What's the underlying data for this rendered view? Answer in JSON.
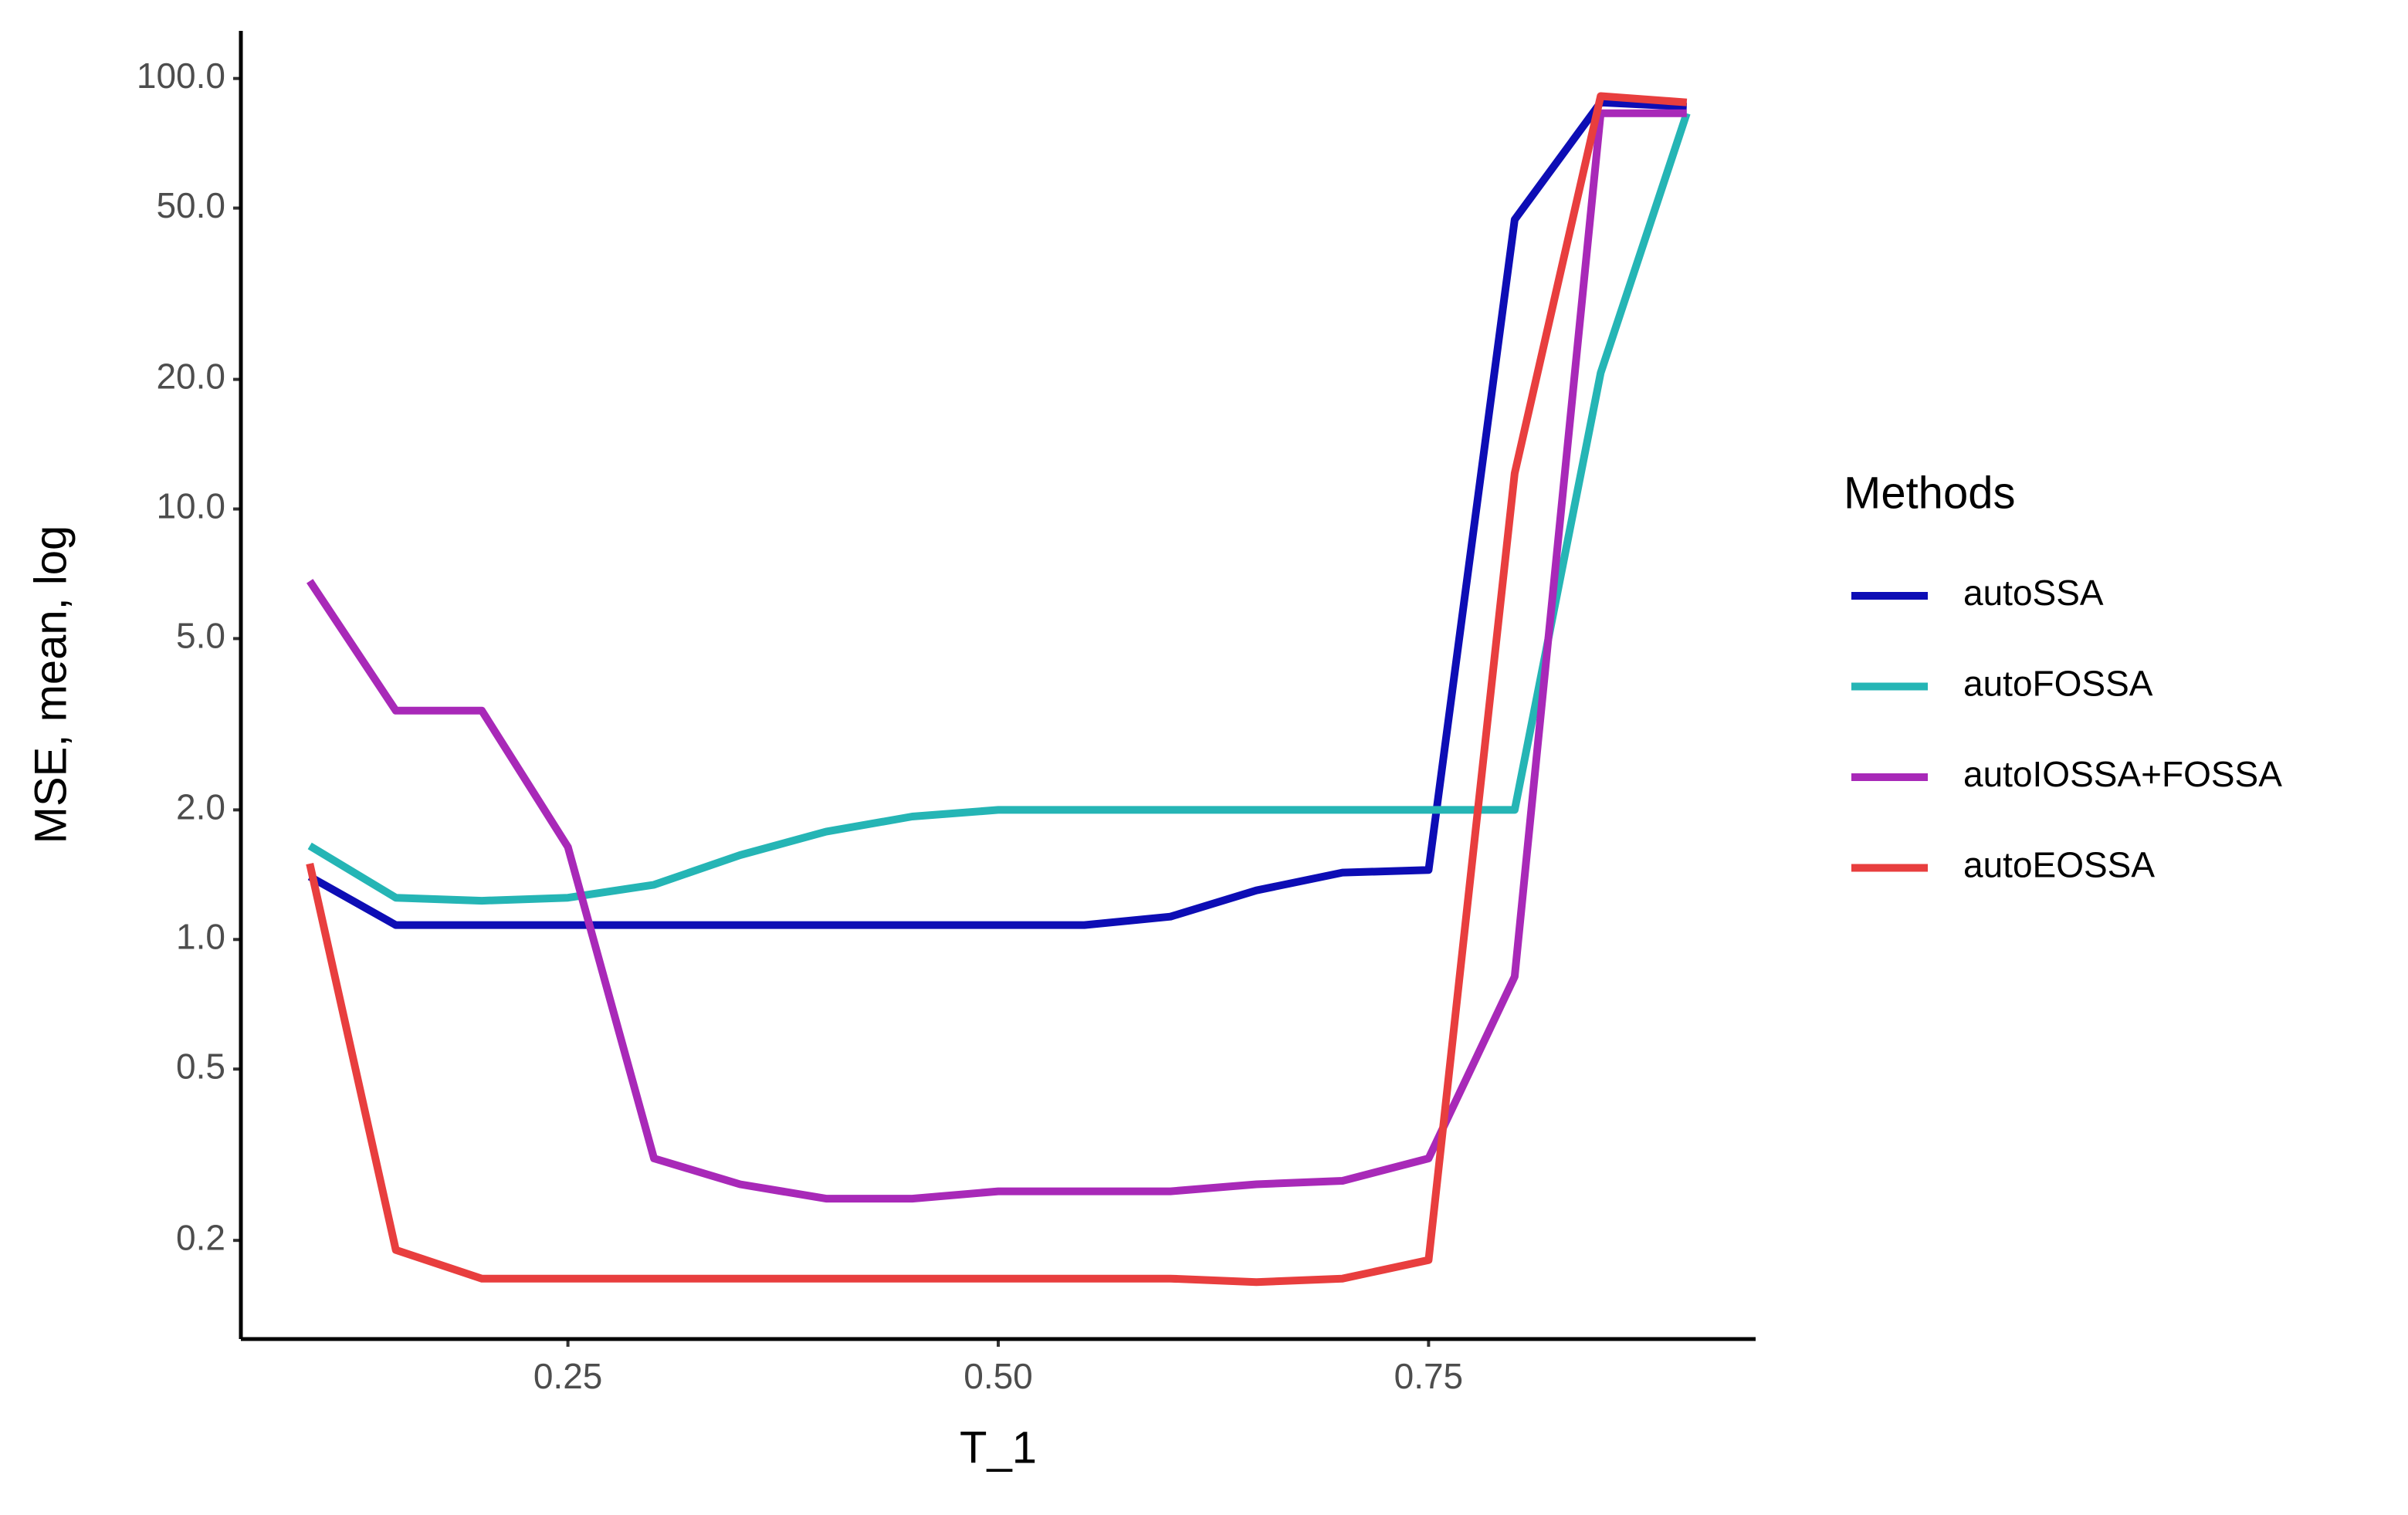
{
  "chart_data": {
    "type": "line",
    "xlabel": "T_1",
    "ylabel": "MSE, mean, log",
    "legend_title": "Methods",
    "legend_position": "right",
    "ylog": true,
    "grid": false,
    "xlim": [
      0.06,
      0.94
    ],
    "xticks": [
      0.25,
      {
        "value": 0.5,
        "label": "0.50"
      },
      0.75
    ],
    "ylim": [
      0.118,
      129
    ],
    "yticks": [
      0.2,
      0.5,
      {
        "value": 1,
        "label": "1.0"
      },
      {
        "value": 2,
        "label": "2.0"
      },
      {
        "value": 5,
        "label": "5.0"
      },
      {
        "value": 10,
        "label": "10.0"
      },
      {
        "value": 20,
        "label": "20.0"
      },
      {
        "value": 50,
        "label": "50.0"
      },
      {
        "value": 100,
        "label": "100.0"
      }
    ],
    "x": [
      0.1,
      0.15,
      0.2,
      0.25,
      0.3,
      0.35,
      0.4,
      0.45,
      0.5,
      0.55,
      0.6,
      0.65,
      0.7,
      0.75,
      0.8,
      0.85,
      0.9
    ],
    "series": [
      {
        "name": "autoSSA",
        "color": "#0d0db5",
        "values": [
          1.4,
          1.08,
          1.08,
          1.08,
          1.08,
          1.08,
          1.08,
          1.08,
          1.08,
          1.08,
          1.13,
          1.3,
          1.43,
          1.45,
          47,
          88,
          86
        ]
      },
      {
        "name": "autoFOSSA",
        "color": "#25b5b5",
        "values": [
          1.65,
          1.25,
          1.23,
          1.25,
          1.34,
          1.57,
          1.78,
          1.93,
          2.0,
          2.0,
          2.0,
          2.0,
          2.0,
          2.0,
          2.0,
          20.7,
          83
        ]
      },
      {
        "name": "autoIOSSA+FOSSA",
        "color": "#a829b8",
        "values": [
          6.8,
          3.4,
          3.4,
          1.64,
          0.31,
          0.27,
          0.25,
          0.25,
          0.26,
          0.26,
          0.26,
          0.27,
          0.275,
          0.31,
          0.82,
          83,
          83
        ]
      },
      {
        "name": "autoEOSSA",
        "color": "#e83e3e",
        "values": [
          1.5,
          0.19,
          0.163,
          0.163,
          0.163,
          0.163,
          0.163,
          0.163,
          0.163,
          0.163,
          0.163,
          0.16,
          0.163,
          0.18,
          12.1,
          91,
          88
        ]
      }
    ]
  }
}
